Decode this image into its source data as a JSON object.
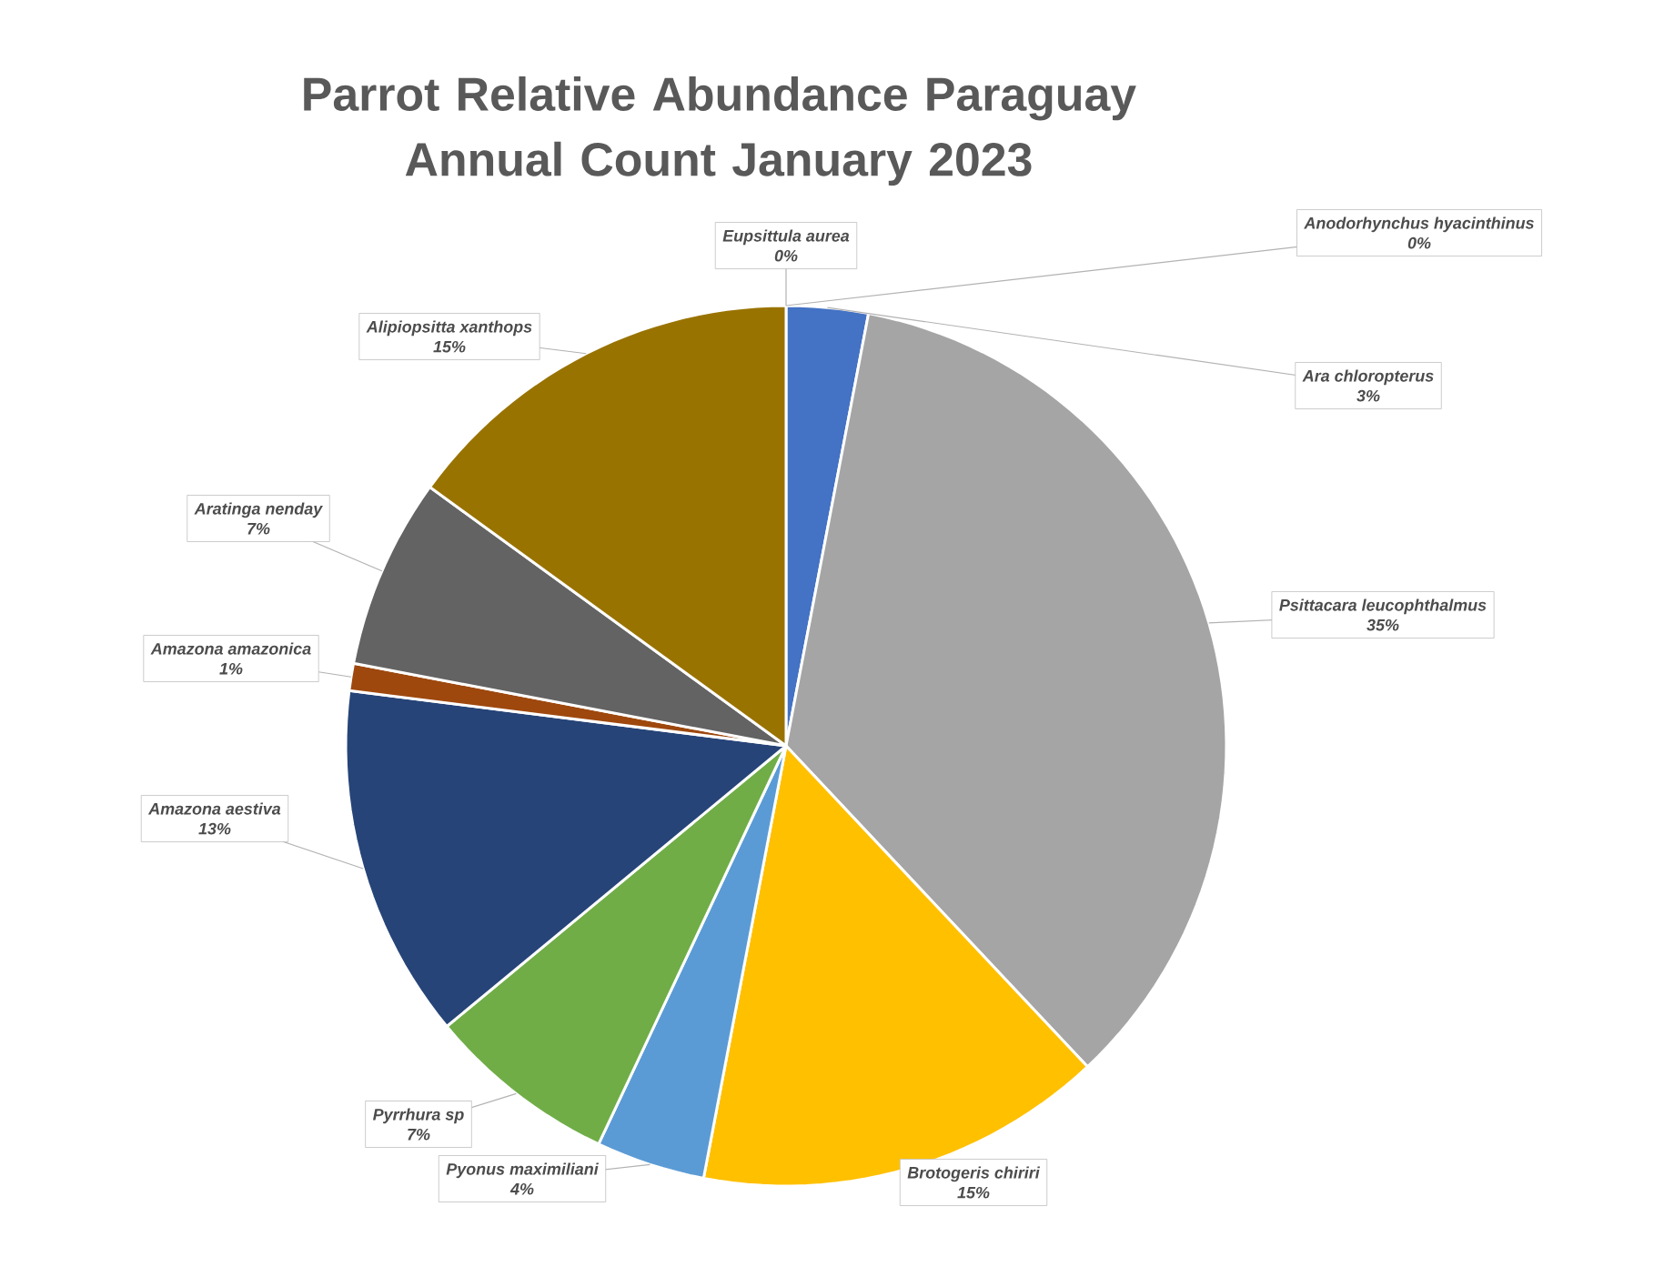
{
  "chart_data": {
    "type": "pie",
    "title": "Parrot Relative Abundance Paraguay Annual Count January 2023",
    "categories": [
      "Eupsittula aurea",
      "Anodorhynchus hyacinthinus",
      "Ara chloropterus",
      "Psittacara leucophthalmus",
      "Brotogeris chiriri",
      "Pyonus maximiliani",
      "Pyrrhura sp",
      "Amazona aestiva",
      "Amazona amazonica",
      "Aratinga nenday",
      "Alipiopsitta xanthops"
    ],
    "values": [
      0,
      0,
      3,
      35,
      15,
      4,
      7,
      13,
      1,
      7,
      15
    ],
    "colors": [
      "#7f6000",
      "#ed7d31",
      "#4472c4",
      "#a5a5a5",
      "#ffc000",
      "#5b9bd5",
      "#70ad47",
      "#264478",
      "#9e480e",
      "#636363",
      "#997300"
    ],
    "value_labels": [
      "0%",
      "0%",
      "3%",
      "35%",
      "15%",
      "4%",
      "7%",
      "13%",
      "1%",
      "7%",
      "15%"
    ]
  }
}
